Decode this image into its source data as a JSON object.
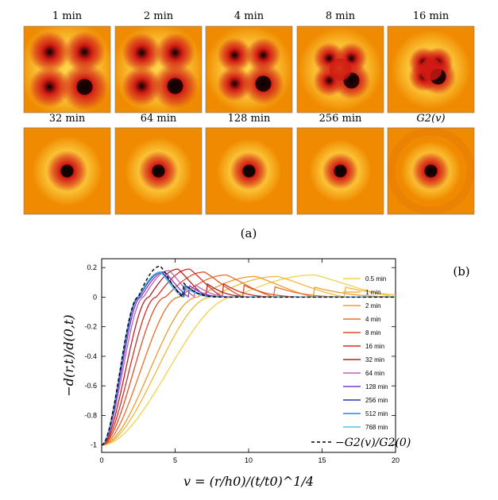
{
  "figure_a": {
    "label": "(a)",
    "colors": {
      "outer": "#f08a00",
      "ring": "#ffd84a",
      "core": "#d11a14",
      "center": "#0a0000"
    },
    "row1": [
      {
        "title": "1 min",
        "stage": 0
      },
      {
        "title": "2 min",
        "stage": 1
      },
      {
        "title": "4 min",
        "stage": 2
      },
      {
        "title": "8 min",
        "stage": 3
      },
      {
        "title": "16 min",
        "stage": 4
      }
    ],
    "row2": [
      {
        "title": "32 min",
        "stage": 5
      },
      {
        "title": "64 min",
        "stage": 6
      },
      {
        "title": "128 min",
        "stage": 7
      },
      {
        "title": "256 min",
        "stage": 8
      },
      {
        "title_math": "G_2(v)",
        "title_display": "G2(v)",
        "stage": 9
      }
    ]
  },
  "chart_data": {
    "type": "line",
    "panel_label": "(b)",
    "xlabel": "v = (r/h0)/(t/t0)^1/4",
    "ylabel": "−d(r,t)/d(0,t)",
    "xlim": [
      0,
      20
    ],
    "ylim": [
      -1.05,
      0.26
    ],
    "x_ticks": [
      0,
      5,
      10,
      15,
      20
    ],
    "y_ticks": [
      0.2,
      0,
      -0.2,
      -0.4,
      -0.6,
      -0.8,
      -1
    ],
    "y_tick_labels": [
      "0.2",
      "0",
      "-0.2",
      "-0.4",
      "-0.6",
      "-0.8",
      "-1"
    ],
    "series": [
      {
        "name": "0.5 min",
        "color": "#f2d24b",
        "peak_x": 14.5,
        "peak_y": 0.15
      },
      {
        "name": "1 min",
        "color": "#f3b73a",
        "peak_x": 12.0,
        "peak_y": 0.14
      },
      {
        "name": "2 min",
        "color": "#ee9b32",
        "peak_x": 10.5,
        "peak_y": 0.14
      },
      {
        "name": "4 min",
        "color": "#e8722a",
        "peak_x": 8.5,
        "peak_y": 0.15
      },
      {
        "name": "8 min",
        "color": "#df4f27",
        "peak_x": 7.0,
        "peak_y": 0.17
      },
      {
        "name": "16 min",
        "color": "#cc3026",
        "peak_x": 6.0,
        "peak_y": 0.19
      },
      {
        "name": "32 min",
        "color": "#b02324",
        "peak_x": 5.2,
        "peak_y": 0.19
      },
      {
        "name": "64 min",
        "color": "#c060b8",
        "peak_x": 4.6,
        "peak_y": 0.18
      },
      {
        "name": "128 min",
        "color": "#7a3fc8",
        "peak_x": 4.3,
        "peak_y": 0.17
      },
      {
        "name": "256 min",
        "color": "#2a36b8",
        "peak_x": 4.1,
        "peak_y": 0.17
      },
      {
        "name": "512 min",
        "color": "#2f86d0",
        "peak_x": 4.0,
        "peak_y": 0.17
      },
      {
        "name": "768 min",
        "color": "#49c6e8",
        "peak_x": 4.0,
        "peak_y": 0.17
      }
    ],
    "reference": {
      "name": "−G2(v)/G2(0)",
      "color": "#000000",
      "style": "dashed",
      "peak_x": 4.0,
      "peak_y": 0.21
    }
  }
}
